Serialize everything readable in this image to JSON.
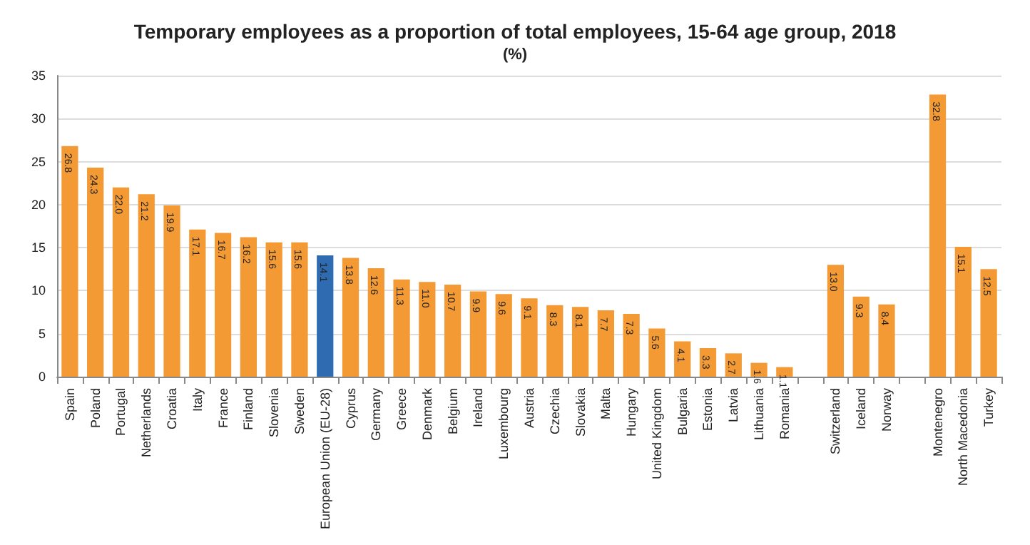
{
  "chart_data": {
    "type": "bar",
    "title": "Temporary employees as a proportion of total employees, 15-64 age group, 2018",
    "subtitle": "(%)",
    "categories": [
      "Spain",
      "Poland",
      "Portugal",
      "Netherlands",
      "Croatia",
      "Italy",
      "France",
      "Finland",
      "Slovenia",
      "Sweden",
      "European Union (EU-28)",
      "Cyprus",
      "Germany",
      "Greece",
      "Denmark",
      "Belgium",
      "Ireland",
      "Luxembourg",
      "Austria",
      "Czechia",
      "Slovakia",
      "Malta",
      "Hungary",
      "United Kingdom",
      "Bulgaria",
      "Estonia",
      "Latvia",
      "Lithuania",
      "Romania",
      null,
      "Switzerland",
      "Iceland",
      "Norway",
      null,
      "Montenegro",
      "North Macedonia",
      "Turkey"
    ],
    "values": [
      26.8,
      24.3,
      22.0,
      21.2,
      19.9,
      17.1,
      16.7,
      16.2,
      15.6,
      15.6,
      14.1,
      13.8,
      12.6,
      11.3,
      11.0,
      10.7,
      9.9,
      9.6,
      9.1,
      8.3,
      8.1,
      7.7,
      7.3,
      5.6,
      4.1,
      3.3,
      2.7,
      1.6,
      1.1,
      null,
      13.0,
      9.3,
      8.4,
      null,
      32.8,
      15.1,
      12.5
    ],
    "colors": [
      "#f39a34",
      "#f39a34",
      "#f39a34",
      "#f39a34",
      "#f39a34",
      "#f39a34",
      "#f39a34",
      "#f39a34",
      "#f39a34",
      "#f39a34",
      "#2e6bb0",
      "#f39a34",
      "#f39a34",
      "#f39a34",
      "#f39a34",
      "#f39a34",
      "#f39a34",
      "#f39a34",
      "#f39a34",
      "#f39a34",
      "#f39a34",
      "#f39a34",
      "#f39a34",
      "#f39a34",
      "#f39a34",
      "#f39a34",
      "#f39a34",
      "#f39a34",
      "#f39a34",
      "#f39a34",
      "#f39a34",
      "#f39a34",
      "#f39a34",
      "#f39a34",
      "#f39a34",
      "#f39a34",
      "#f39a34"
    ],
    "value_labels": [
      "26.8",
      "24.3",
      "22.0",
      "21.2",
      "19.9",
      "17.1",
      "16.7",
      "16.2",
      "15.6",
      "15.6",
      "14.1",
      "13.8",
      "12.6",
      "11.3",
      "11.0",
      "10.7",
      "9.9",
      "9.6",
      "9.1",
      "8.3",
      "8.1",
      "7.7",
      "7.3",
      "5.6",
      "4.1",
      "3.3",
      "2.7",
      "1.6",
      "1.1",
      null,
      "13.0",
      "9.3",
      "8.4",
      null,
      "32.8",
      "15.1",
      "12.5"
    ],
    "ylim": [
      0,
      35
    ],
    "yticks": [
      0,
      5,
      10,
      15,
      20,
      25,
      30,
      35
    ],
    "grid": "y"
  }
}
